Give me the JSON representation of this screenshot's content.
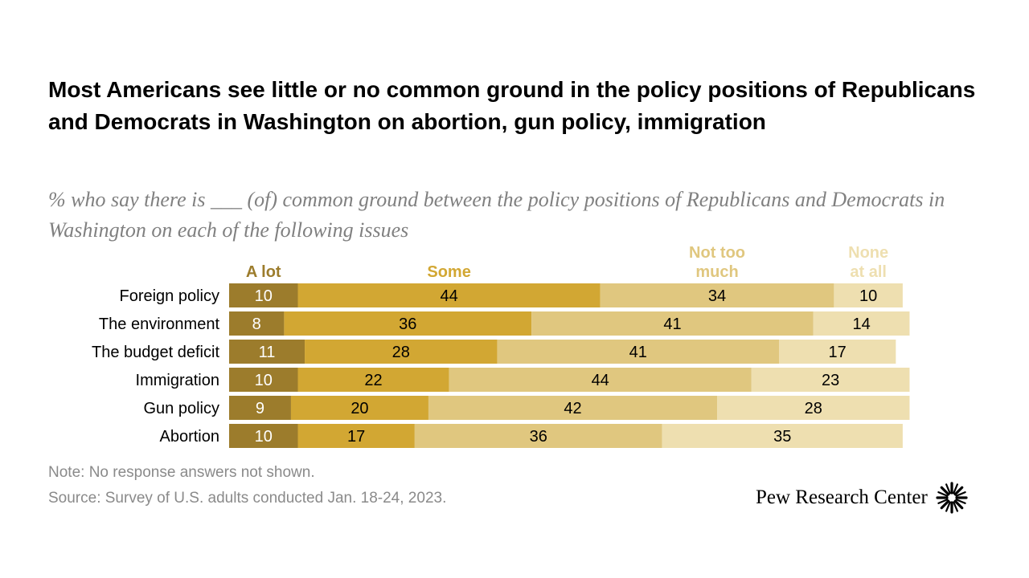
{
  "title": "Most Americans see little or no common ground in the policy positions of Republicans and Democrats in Washington on abortion, gun policy, immigration",
  "subtitle": "% who say there is ___ (of) common ground between the policy positions of Republicans and Democrats in Washington on each of the following issues",
  "note": "Note: No response answers not shown.",
  "source": "Source: Survey of U.S. adults conducted Jan. 18-24, 2023.",
  "brand": {
    "name": "Pew Research Center",
    "logo_icon": "pew-sunburst-logo-icon"
  },
  "colors": {
    "a_lot": "#9c7c2c",
    "some": "#d2a733",
    "not_too_much": "#e0c77f",
    "none_at_all": "#eedfb0",
    "label_header_a_lot": "#9c7c2c",
    "label_header_some": "#d2a733",
    "label_header_not_too_much": "#e0c77f",
    "label_header_none_at_all": "#eedfb0"
  },
  "chart_data": {
    "type": "bar",
    "orientation": "horizontal",
    "stacked": true,
    "categories": [
      "Foreign policy",
      "The environment",
      "The budget deficit",
      "Immigration",
      "Gun policy",
      "Abortion"
    ],
    "series": [
      {
        "name": "A lot",
        "legend_lines": [
          "A lot"
        ],
        "values": [
          10,
          8,
          11,
          10,
          9,
          10
        ]
      },
      {
        "name": "Some",
        "legend_lines": [
          "Some"
        ],
        "values": [
          44,
          36,
          28,
          22,
          20,
          17
        ]
      },
      {
        "name": "Not too much",
        "legend_lines": [
          "Not too",
          "much"
        ],
        "values": [
          34,
          41,
          41,
          44,
          42,
          36
        ]
      },
      {
        "name": "None at all",
        "legend_lines": [
          "None",
          "at all"
        ],
        "values": [
          10,
          14,
          17,
          23,
          28,
          35
        ]
      }
    ],
    "xlim": [
      0,
      100
    ],
    "grid": false,
    "legend": "top, above columns"
  }
}
